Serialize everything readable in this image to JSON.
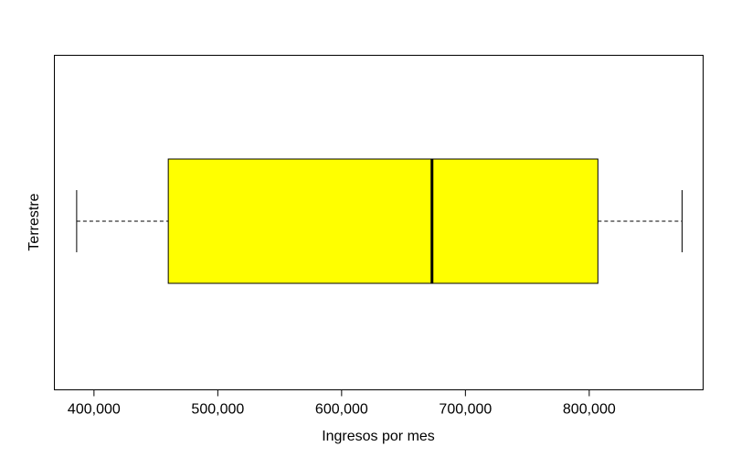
{
  "chart_data": {
    "type": "boxplot",
    "orientation": "horizontal",
    "title": "",
    "xlabel": "Ingresos por mes",
    "ylabel": "Terrestre",
    "xlim": [
      368000,
      892000
    ],
    "ticks": [
      400000,
      500000,
      600000,
      700000,
      800000
    ],
    "tick_labels": [
      "400,000",
      "500,000",
      "600,000",
      "700,000",
      "800,000"
    ],
    "box": {
      "whisker_low": 386000,
      "q1": 460000,
      "median": 673000,
      "q3": 807000,
      "whisker_high": 875000
    },
    "box_fill": "#ffff00",
    "grid": false
  }
}
